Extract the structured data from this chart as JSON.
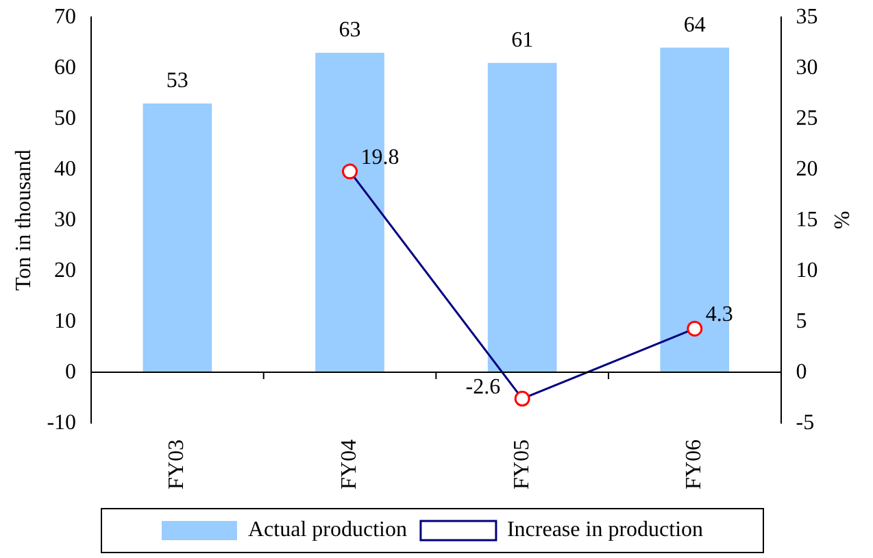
{
  "chart_data": {
    "type": "bar",
    "ylabel": "Ton in thousand",
    "y2label": "%",
    "categories": [
      "FY03",
      "FY04",
      "FY05",
      "FY06"
    ],
    "series": [
      {
        "name": "Actual production",
        "color": "#99ccff",
        "values": [
          53,
          63,
          61,
          64
        ]
      },
      {
        "name": "Increase in production",
        "type": "line",
        "axis": "y2",
        "color": "#000080",
        "marker": "circle",
        "values": [
          null,
          19.8,
          -2.6,
          4.3
        ]
      }
    ],
    "ylim": [
      -10,
      70
    ],
    "yticks": [
      -10,
      0,
      10,
      20,
      30,
      40,
      50,
      60,
      70
    ],
    "y2lim": [
      -5,
      35
    ],
    "y2ticks": [
      -5,
      0,
      5,
      10,
      15,
      20,
      25,
      30,
      35
    ],
    "ref_lines": [
      {
        "axis": "y",
        "value": 0,
        "color": "#000000"
      }
    ],
    "data_labels": true,
    "legend": "bottom"
  }
}
